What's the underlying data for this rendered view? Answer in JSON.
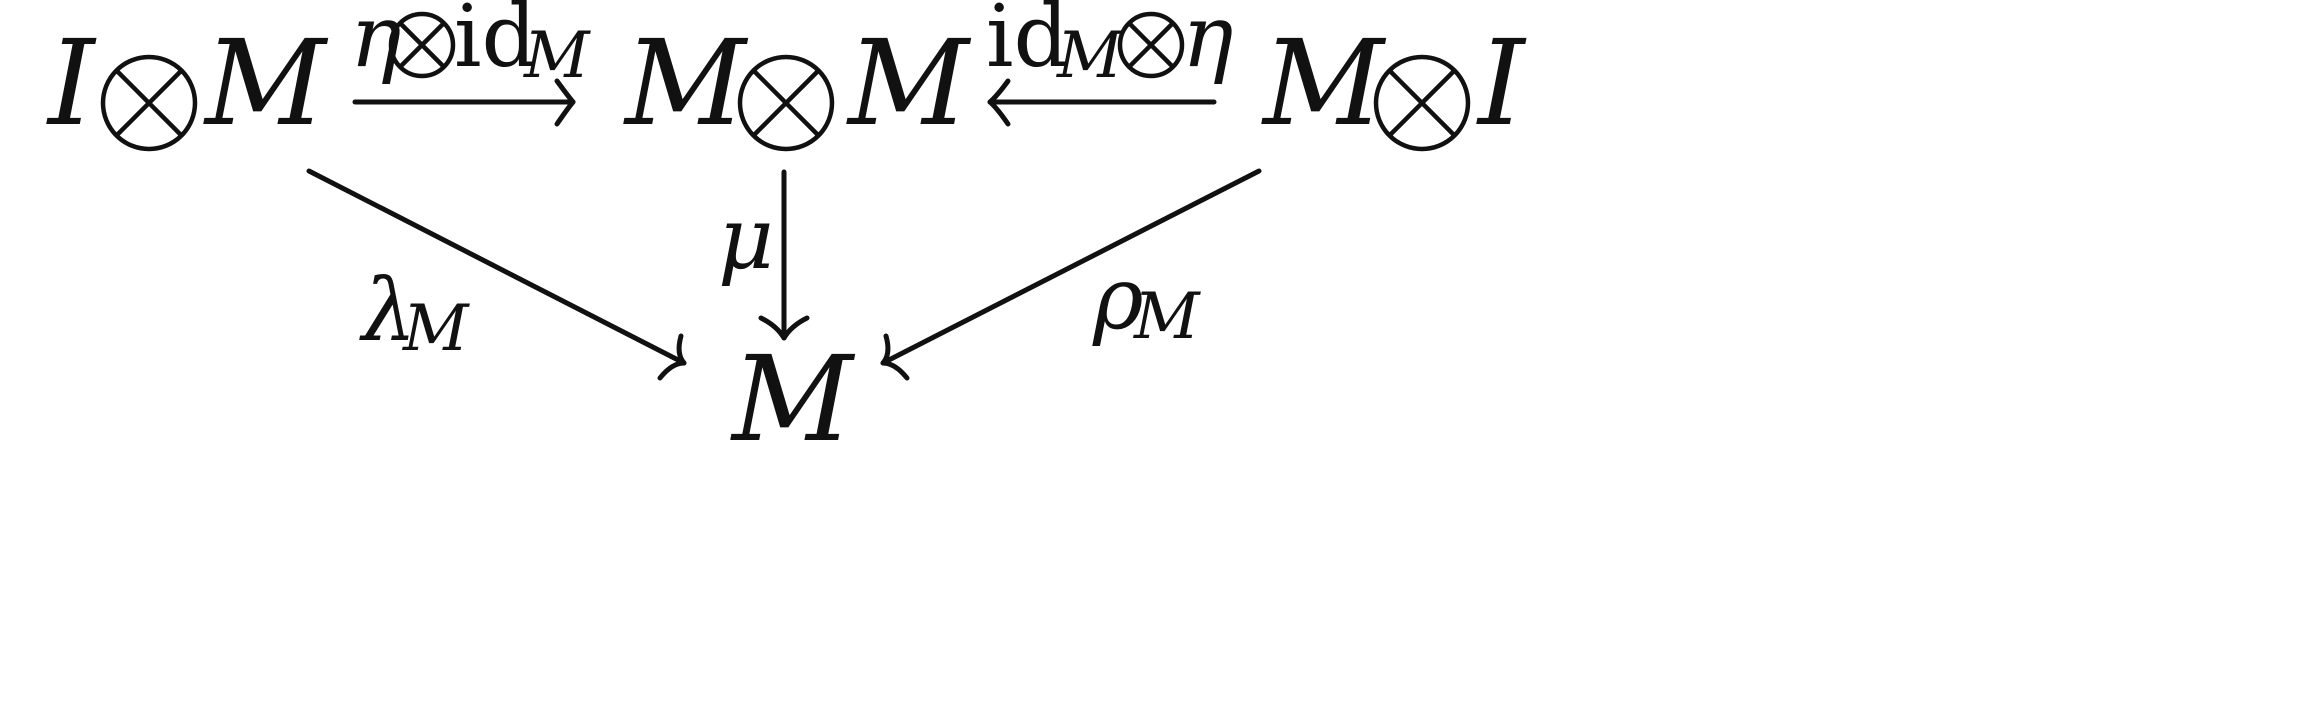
{
  "diagram": {
    "nodes": {
      "left_domain": {
        "left": "I",
        "otimes": "⊗",
        "right": "M"
      },
      "center": {
        "left": "M",
        "otimes": "⊗",
        "right": "M"
      },
      "right_domain": {
        "left": "M",
        "otimes": "⊗",
        "right": "I"
      },
      "bottom": {
        "symbol": "M"
      }
    },
    "arrows": {
      "eta_tensor_id": {
        "eta": "η",
        "otimes": "⊗",
        "id": "id",
        "sub": "M"
      },
      "id_tensor_eta": {
        "id": "id",
        "sub": "M",
        "otimes": "⊗",
        "eta": "η"
      },
      "mu": {
        "symbol": "μ"
      },
      "lambda": {
        "symbol": "λ",
        "sub": "M"
      },
      "rho": {
        "symbol": "ρ",
        "sub": "M"
      }
    },
    "icons": {
      "tensor": "otimes-icon"
    }
  }
}
